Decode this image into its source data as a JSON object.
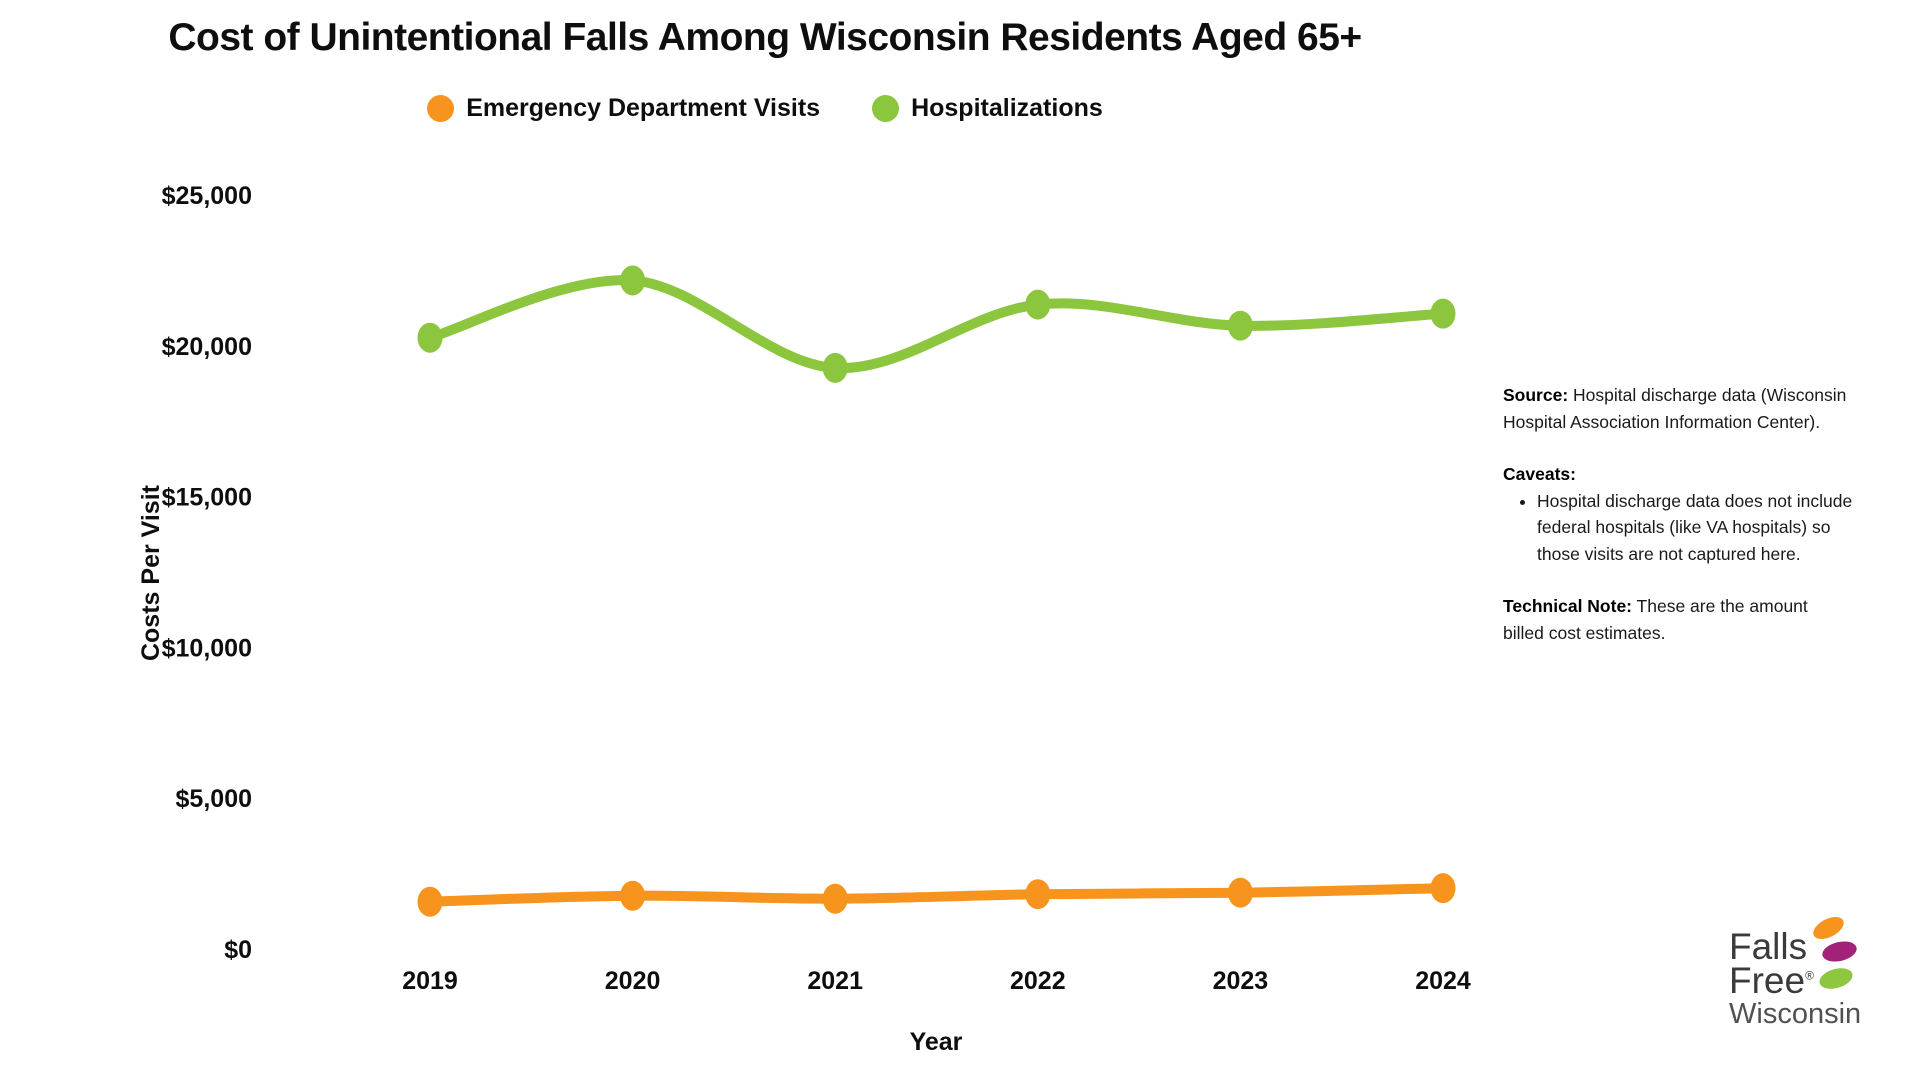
{
  "title": "Cost of Unintentional Falls Among Wisconsin Residents Aged 65+",
  "legend": {
    "items": [
      {
        "label": "Emergency Department Visits",
        "color": "#F7941D"
      },
      {
        "label": "Hospitalizations",
        "color": "#8CC63E"
      }
    ]
  },
  "chart_data": {
    "type": "line",
    "x": [
      "2019",
      "2020",
      "2021",
      "2022",
      "2023",
      "2024"
    ],
    "series": [
      {
        "name": "Emergency Department Visits",
        "color": "#F7941D",
        "values": [
          1600,
          1800,
          1700,
          1850,
          1900,
          2050
        ]
      },
      {
        "name": "Hospitalizations",
        "color": "#8CC63E",
        "values": [
          20300,
          22200,
          19300,
          21400,
          20700,
          21100
        ]
      }
    ],
    "title": "Cost of Unintentional Falls Among Wisconsin Residents Aged 65+",
    "xlabel": "Year",
    "ylabel": "Costs Per Visit",
    "ylim": [
      0,
      25000
    ],
    "ytick_values": [
      0,
      5000,
      10000,
      15000,
      20000,
      25000
    ],
    "ytick_labels": [
      "$0",
      "$5,000",
      "$10,000",
      "$15,000",
      "$20,000",
      "$25,000"
    ],
    "grid": false,
    "smooth": true,
    "legend_position": "top"
  },
  "notes": {
    "source_label": "Source:",
    "source_text": " Hospital discharge data (Wisconsin Hospital Association Information Center).",
    "caveats_label": "Caveats:",
    "caveat_items": [
      "Hospital discharge data does not include federal hospitals (like VA hospitals) so those visits are not captured here."
    ],
    "technote_label": "Technical Note:",
    "technote_text": " These are the amount billed cost estimates."
  },
  "logo": {
    "line1": "Falls",
    "line2": "Free",
    "reg_mark": "®",
    "line3": "Wisconsin",
    "colors": {
      "orange": "#F7941E",
      "magenta": "#A2227A",
      "green": "#8DC63F"
    }
  }
}
